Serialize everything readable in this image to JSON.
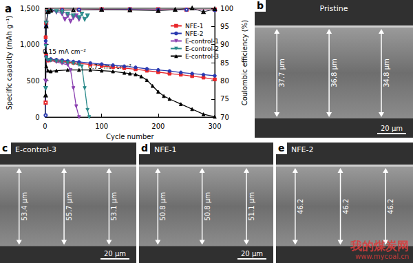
{
  "chart_data": {
    "type": "line",
    "title": "a",
    "x_label": "Cycle number",
    "y_label": "Specific capacity (mAh g⁻¹)",
    "y2_label": "Coulombic efficiency (%)",
    "annotations": [
      "0.15 mA cm⁻²",
      "0.75 mA cm⁻²"
    ],
    "xlim": [
      0,
      300
    ],
    "xticks": [
      0,
      100,
      200,
      300
    ],
    "ylim": [
      0,
      1500
    ],
    "yticks": [
      0,
      500,
      1000,
      1500
    ],
    "y2lim": [
      70,
      100
    ],
    "y2ticks": [
      70,
      75,
      80,
      85,
      90,
      95,
      100
    ],
    "grid": false,
    "legend": "upper right",
    "series": [
      {
        "name": "NFE-1",
        "color": "#e8262a",
        "marker": "square",
        "x": [
          1,
          2,
          5,
          10,
          20,
          30,
          40,
          50,
          60,
          80,
          100,
          120,
          140,
          160,
          180,
          200,
          220,
          240,
          260,
          280,
          300
        ],
        "values": [
          1100,
          850,
          780,
          790,
          780,
          770,
          760,
          750,
          740,
          725,
          705,
          690,
          675,
          660,
          640,
          620,
          600,
          585,
          565,
          545,
          520
        ]
      },
      {
        "name": "NFE-2",
        "color": "#2a3ab0",
        "marker": "circle",
        "x": [
          1,
          2,
          5,
          10,
          20,
          30,
          40,
          50,
          60,
          80,
          100,
          120,
          140,
          160,
          180,
          200,
          220,
          240,
          260,
          280,
          300
        ],
        "values": [
          1050,
          830,
          790,
          800,
          790,
          785,
          775,
          765,
          760,
          745,
          730,
          715,
          700,
          685,
          665,
          650,
          635,
          615,
          600,
          585,
          570
        ]
      },
      {
        "name": "E-control-1",
        "color": "#8a3fb0",
        "marker": "triangle-down",
        "x": [
          1,
          2,
          5,
          10,
          20,
          30,
          40,
          45,
          50,
          55,
          60
        ],
        "values": [
          1000,
          820,
          790,
          780,
          760,
          740,
          720,
          650,
          400,
          150,
          0
        ]
      },
      {
        "name": "E-control-2",
        "color": "#2a8a8a",
        "marker": "triangle-down",
        "x": [
          1,
          2,
          5,
          10,
          20,
          30,
          40,
          50,
          60,
          65,
          70,
          75,
          78
        ],
        "values": [
          980,
          820,
          790,
          780,
          770,
          760,
          750,
          740,
          720,
          700,
          400,
          100,
          0
        ]
      },
      {
        "name": "E-control-3",
        "color": "#000000",
        "marker": "triangle",
        "x": [
          1,
          2,
          5,
          10,
          20,
          40,
          60,
          80,
          100,
          120,
          140,
          150,
          160,
          170,
          180,
          190,
          200,
          210,
          220,
          240,
          260,
          280,
          300
        ],
        "values": [
          900,
          700,
          640,
          630,
          640,
          650,
          650,
          650,
          640,
          630,
          610,
          600,
          590,
          560,
          510,
          430,
          350,
          290,
          250,
          180,
          110,
          40,
          5
        ]
      },
      {
        "name": "NFE-1",
        "color": "#e8262a",
        "marker": "square",
        "axis": "y2",
        "x": [
          1,
          2,
          5,
          10,
          30,
          60,
          100,
          150,
          200,
          250,
          300
        ],
        "values": [
          74,
          96,
          99.2,
          99.5,
          99.6,
          99.6,
          99.7,
          99.7,
          99.7,
          99.6,
          99.6
        ]
      },
      {
        "name": "NFE-2",
        "color": "#2a3ab0",
        "marker": "circle",
        "axis": "y2",
        "x": [
          1,
          2,
          5,
          10,
          30,
          60,
          100,
          150,
          200,
          250,
          300
        ],
        "values": [
          70.5,
          95,
          99,
          99.4,
          99.5,
          99.6,
          99.6,
          99.7,
          99.6,
          99.6,
          99.5
        ]
      },
      {
        "name": "E-control-1",
        "color": "#8a3fb0",
        "marker": "triangle-down",
        "axis": "y2",
        "x": [
          1,
          2,
          5,
          10,
          20,
          30,
          35,
          40,
          45,
          50,
          55,
          60
        ],
        "values": [
          80,
          96,
          99,
          99.3,
          99,
          98.5,
          97,
          98,
          96.5,
          97.5,
          98,
          97
        ]
      },
      {
        "name": "E-control-2",
        "color": "#2a8a8a",
        "marker": "triangle-down",
        "axis": "y2",
        "x": [
          1,
          2,
          5,
          10,
          20,
          30,
          40,
          50,
          60,
          65,
          70,
          75
        ],
        "values": [
          78,
          96,
          99,
          99.3,
          99.2,
          99,
          98.5,
          98,
          97.5,
          98.5,
          97,
          98
        ]
      },
      {
        "name": "E-control-3",
        "color": "#000000",
        "marker": "triangle",
        "axis": "y2",
        "x": [
          1,
          2,
          5,
          10,
          50,
          100,
          150,
          200,
          230,
          260,
          280,
          300
        ],
        "values": [
          76,
          95,
          99,
          99.4,
          99.5,
          99.6,
          99.5,
          99.3,
          99.6,
          100,
          99,
          99.8
        ]
      }
    ]
  },
  "panels": [
    {
      "label": "b",
      "title": "Pristine",
      "thicknesses": [
        "37.7 μm",
        "36.8 μm",
        "34.8 μm"
      ],
      "scale_bar": "20 μm"
    },
    {
      "label": "c",
      "title": "E-control-3",
      "thicknesses": [
        "53.4 μm",
        "55.7 μm",
        "53.1 μm"
      ],
      "scale_bar": "20 μm"
    },
    {
      "label": "d",
      "title": "NFE-1",
      "thicknesses": [
        "50.8 μm",
        "50.8 μm",
        "51.1 μm"
      ],
      "scale_bar": "20 μm"
    },
    {
      "label": "e",
      "title": "NFE-2",
      "thicknesses": [
        "46.2",
        "46.2",
        "46.2"
      ]
    }
  ],
  "watermark": [
    "我的煤炭网",
    "www.mycoal.cn"
  ]
}
